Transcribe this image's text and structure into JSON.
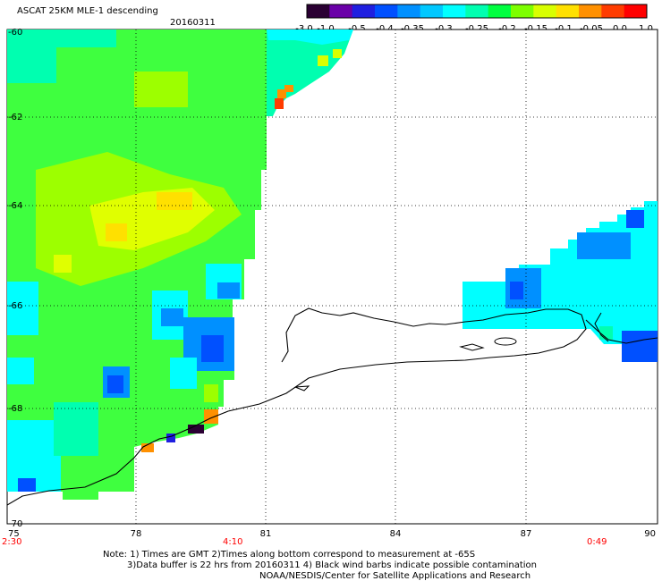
{
  "title": "ASCAT 25KM MLE-1 descending",
  "date": "20160311",
  "colorbar": {
    "labels": [
      "-3.0",
      "-1.0",
      "-0.5",
      "-0.4",
      "-0.35",
      "-0.3",
      "-0.25",
      "-0.2",
      "-0.15",
      "-0.1",
      "-0.05",
      "0.0",
      "1.0"
    ],
    "colors": [
      "#2a0033",
      "#6a00a8",
      "#1f1fe0",
      "#0050ff",
      "#0090ff",
      "#00c8ff",
      "#00ffff",
      "#00ffb0",
      "#00ff40",
      "#7dff00",
      "#d8ff00",
      "#ffe000",
      "#ff9000",
      "#ff3c00",
      "#ff0000"
    ]
  },
  "map": {
    "lon_ticks": [
      "75",
      "78",
      "81",
      "84",
      "87",
      "90"
    ],
    "lat_ticks": [
      "-60",
      "-62",
      "-64",
      "-66",
      "-68",
      "-70"
    ],
    "times": [
      "2:30",
      "4:10",
      "0:49"
    ]
  },
  "notes": {
    "line1": "Note: 1) Times are GMT 2)Times along bottom correspond to measurement at -65S",
    "line2": "3)Data buffer is 22 hrs from 20160311 4) Black wind barbs indicate possible contamination",
    "line3": "NOAA/NESDIS/Center for Satellite Applications and Research"
  }
}
